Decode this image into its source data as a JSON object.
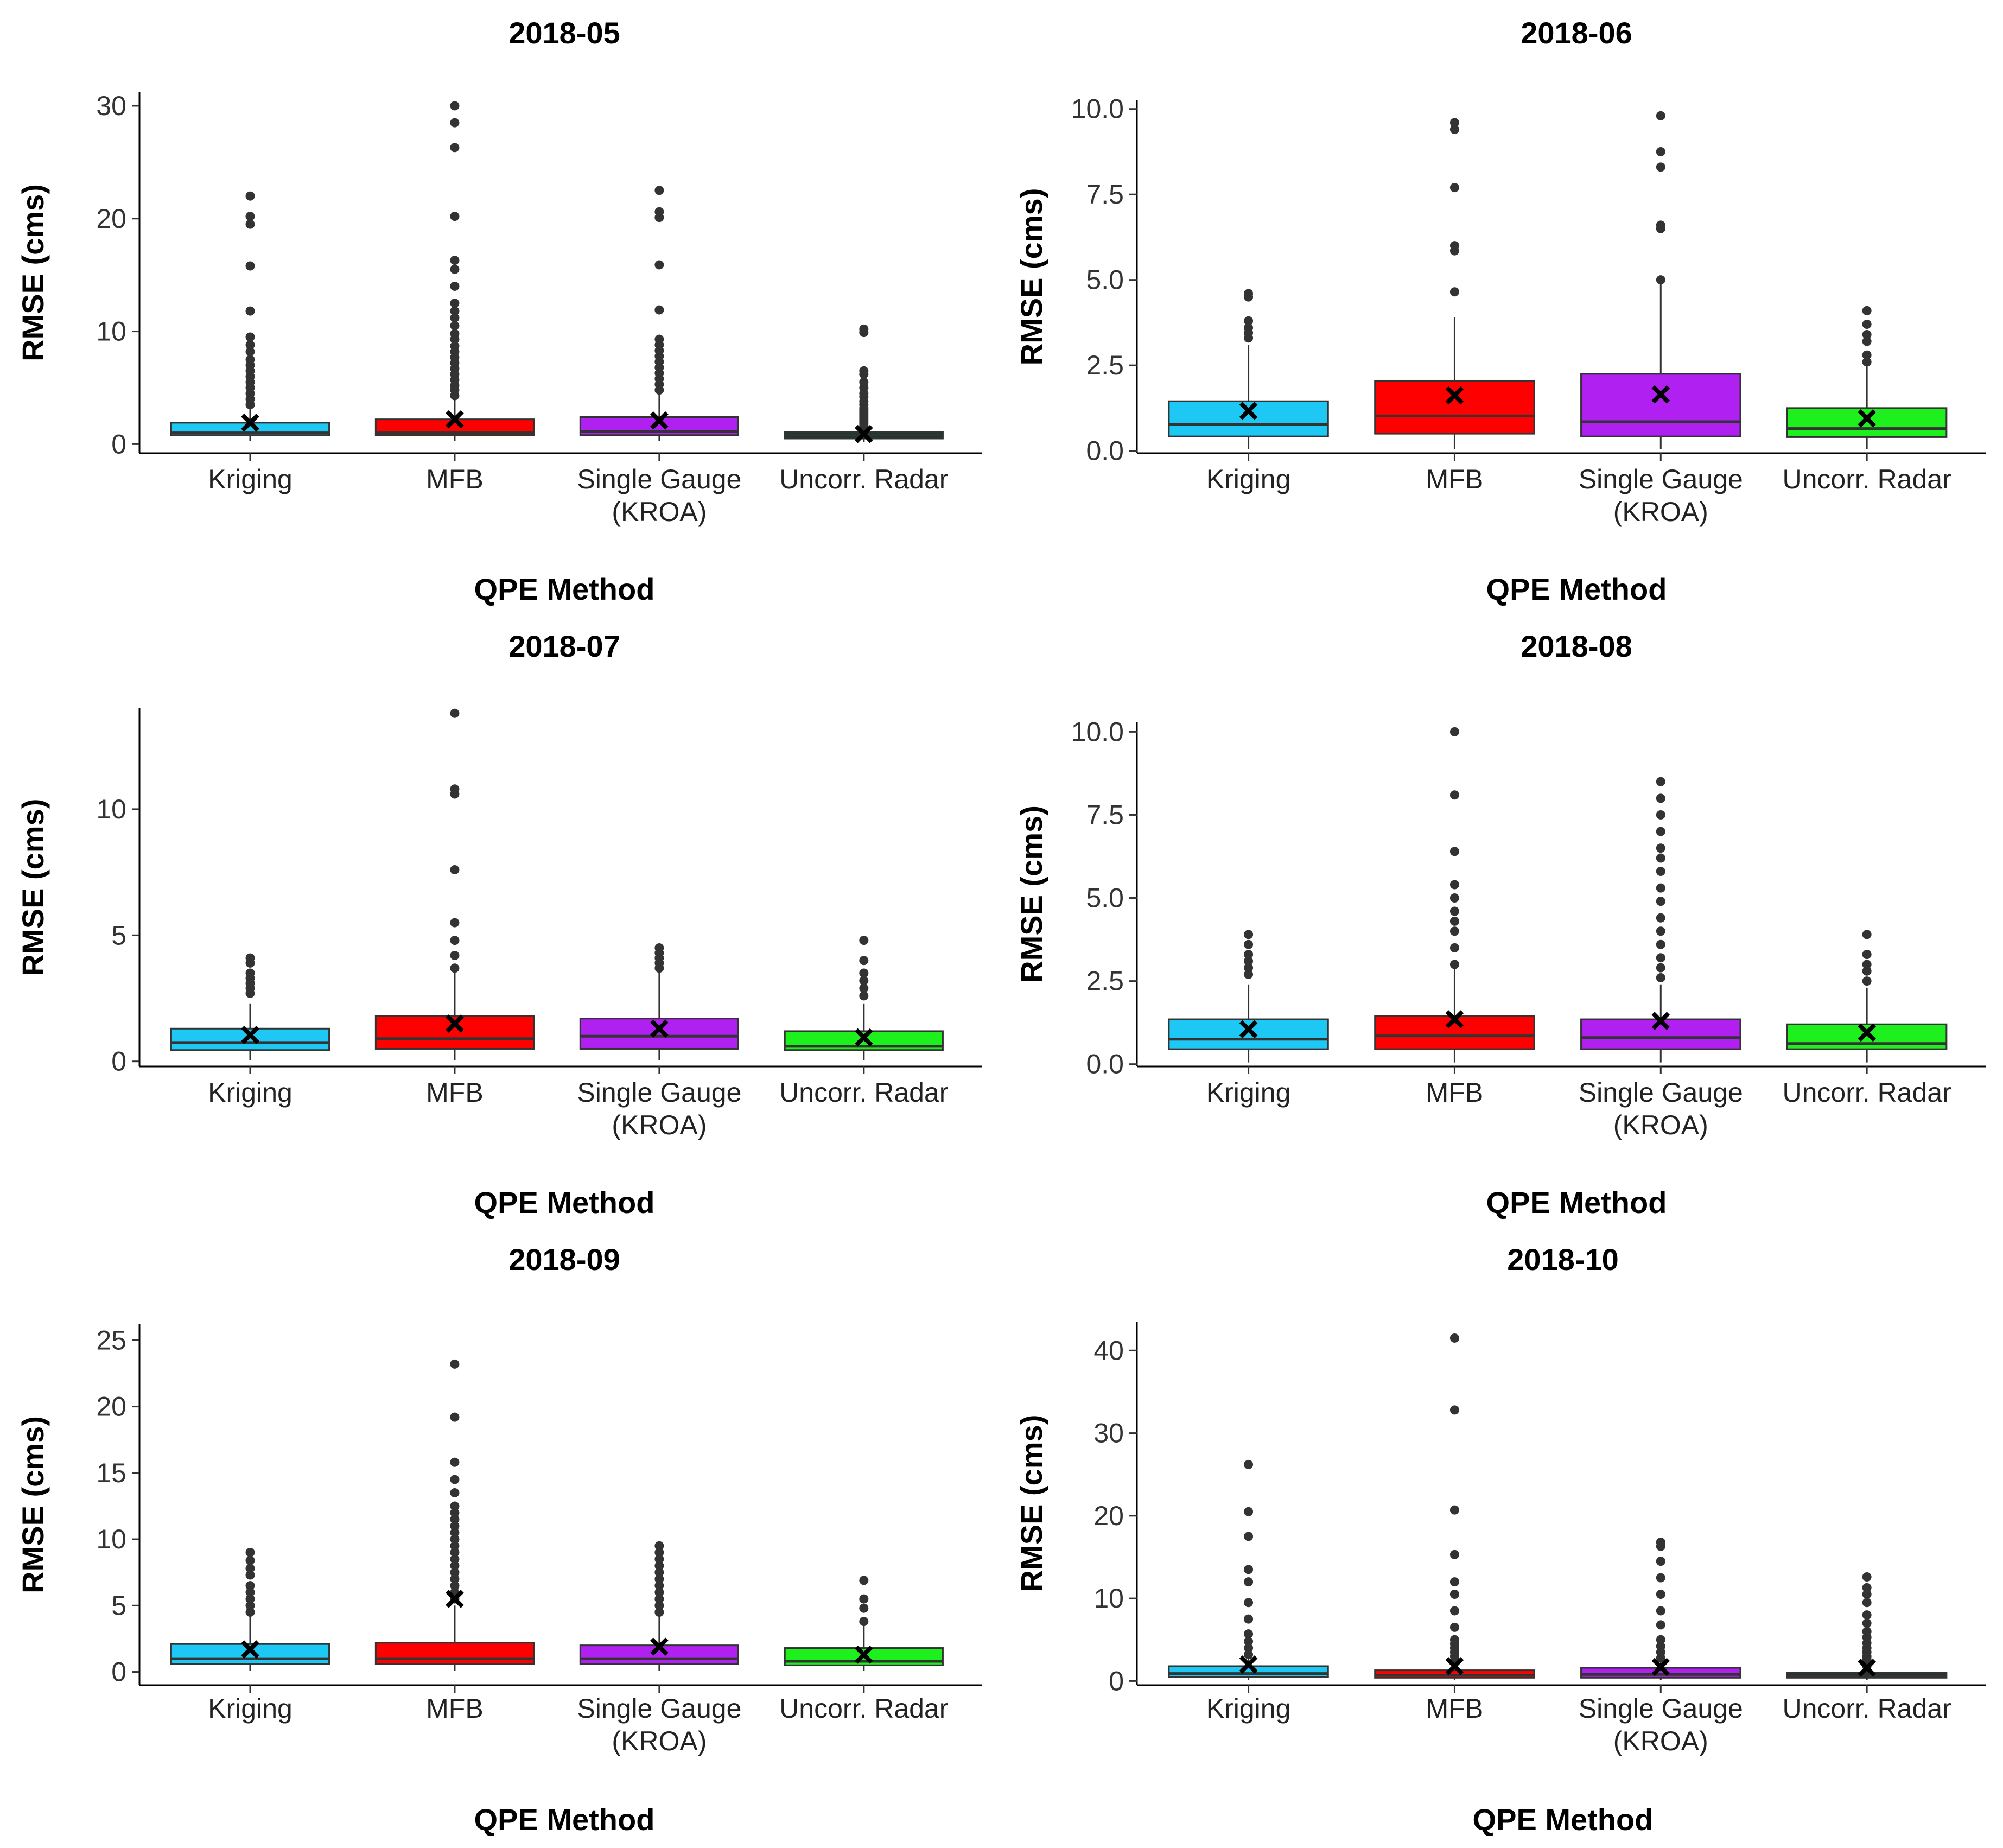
{
  "chart_data": [
    {
      "type": "box",
      "title": "2018-05",
      "xlabel": "QPE Method",
      "ylabel": "RMSE (cms)",
      "ylim": [
        -0.8,
        31.2
      ],
      "yticks": [
        0,
        10,
        20,
        30
      ],
      "ytick_labels": [
        "0",
        "10",
        "20",
        "30"
      ],
      "categories": [
        [
          "Kriging"
        ],
        [
          "MFB"
        ],
        [
          "Single Gauge",
          "(KROA)"
        ],
        [
          "Uncorr. Radar"
        ]
      ],
      "colors": [
        "#1ec8f5",
        "#ff0000",
        "#b020f0",
        "#1a3a2a"
      ],
      "series": [
        {
          "name": "Kriging",
          "q1": 0.8,
          "median": 1.0,
          "q3": 1.9,
          "whisker_low": 0.3,
          "whisker_high": 3.2,
          "mean": 1.9,
          "outliers": [
            3.5,
            4.0,
            4.5,
            5.0,
            5.5,
            6.0,
            6.5,
            7.0,
            7.5,
            8.2,
            8.8,
            9.5,
            11.8,
            15.8,
            19.5,
            20.2,
            22.0
          ]
        },
        {
          "name": "MFB",
          "q1": 0.8,
          "median": 1.0,
          "q3": 2.2,
          "whisker_low": 0.3,
          "whisker_high": 4.0,
          "mean": 2.2,
          "outliers": [
            4.3,
            4.8,
            5.2,
            5.7,
            6.2,
            6.7,
            7.2,
            7.7,
            8.2,
            8.7,
            9.3,
            9.8,
            10.5,
            11.2,
            11.8,
            12.5,
            14.0,
            15.5,
            16.3,
            20.2,
            26.3,
            28.5,
            30.0
          ]
        },
        {
          "name": "Single Gauge (KROA)",
          "q1": 0.8,
          "median": 1.1,
          "q3": 2.4,
          "whisker_low": 0.3,
          "whisker_high": 4.5,
          "mean": 2.1,
          "outliers": [
            4.8,
            5.3,
            5.8,
            6.3,
            6.8,
            7.3,
            7.8,
            8.3,
            8.8,
            9.3,
            11.9,
            15.9,
            20.1,
            20.6,
            22.5
          ]
        },
        {
          "name": "Uncorr. Radar",
          "q1": 0.5,
          "median": 0.8,
          "q3": 1.1,
          "whisker_low": 0.2,
          "whisker_high": 1.5,
          "mean": 0.9,
          "outliers": [
            1.6,
            1.8,
            2.0,
            2.2,
            2.4,
            2.6,
            2.8,
            3.0,
            3.2,
            3.5,
            3.8,
            4.2,
            4.5,
            5.0,
            5.5,
            6.2,
            6.5,
            9.9,
            10.2
          ]
        }
      ]
    },
    {
      "type": "box",
      "title": "2018-06",
      "xlabel": "QPE Method",
      "ylabel": "RMSE (cms)",
      "ylim": [
        -0.07,
        10.25
      ],
      "yticks": [
        0,
        2.5,
        5,
        7.5,
        10
      ],
      "ytick_labels": [
        "0.0",
        "2.5",
        "5.0",
        "7.5",
        "10.0"
      ],
      "categories": [
        [
          "Kriging"
        ],
        [
          "MFB"
        ],
        [
          "Single Gauge",
          "(KROA)"
        ],
        [
          "Uncorr. Radar"
        ]
      ],
      "colors": [
        "#1ec8f5",
        "#ff0000",
        "#b020f0",
        "#1ef01e"
      ],
      "series": [
        {
          "name": "Kriging",
          "q1": 0.42,
          "median": 0.78,
          "q3": 1.45,
          "whisker_low": 0.05,
          "whisker_high": 3.1,
          "mean": 1.17,
          "outliers": [
            3.3,
            3.45,
            3.6,
            3.8,
            4.5,
            4.6
          ]
        },
        {
          "name": "MFB",
          "q1": 0.5,
          "median": 1.02,
          "q3": 2.05,
          "whisker_low": 0.05,
          "whisker_high": 3.9,
          "mean": 1.62,
          "outliers": [
            4.65,
            5.85,
            6.0,
            7.7,
            9.4,
            9.6
          ]
        },
        {
          "name": "Single Gauge (KROA)",
          "q1": 0.42,
          "median": 0.85,
          "q3": 2.25,
          "whisker_low": 0.05,
          "whisker_high": 4.9,
          "mean": 1.65,
          "outliers": [
            5.0,
            6.5,
            6.6,
            8.3,
            8.75,
            9.8
          ]
        },
        {
          "name": "Uncorr. Radar",
          "q1": 0.4,
          "median": 0.65,
          "q3": 1.25,
          "whisker_low": 0.05,
          "whisker_high": 2.5,
          "mean": 0.95,
          "outliers": [
            2.6,
            2.8,
            3.2,
            3.4,
            3.7,
            4.1
          ]
        }
      ]
    },
    {
      "type": "box",
      "title": "2018-07",
      "xlabel": "QPE Method",
      "ylabel": "RMSE (cms)",
      "ylim": [
        -0.2,
        14.0
      ],
      "yticks": [
        0,
        5,
        10
      ],
      "ytick_labels": [
        "0",
        "5",
        "10"
      ],
      "categories": [
        [
          "Kriging"
        ],
        [
          "MFB"
        ],
        [
          "Single Gauge",
          "(KROA)"
        ],
        [
          "Uncorr. Radar"
        ]
      ],
      "colors": [
        "#1ec8f5",
        "#ff0000",
        "#b020f0",
        "#1ef01e"
      ],
      "series": [
        {
          "name": "Kriging",
          "q1": 0.45,
          "median": 0.75,
          "q3": 1.3,
          "whisker_low": 0.05,
          "whisker_high": 2.3,
          "mean": 1.05,
          "outliers": [
            2.7,
            2.9,
            3.1,
            3.3,
            3.5,
            3.9,
            4.1
          ]
        },
        {
          "name": "MFB",
          "q1": 0.5,
          "median": 0.9,
          "q3": 1.8,
          "whisker_low": 0.05,
          "whisker_high": 3.5,
          "mean": 1.5,
          "outliers": [
            3.7,
            4.2,
            4.8,
            5.5,
            7.6,
            10.6,
            10.8,
            13.8
          ]
        },
        {
          "name": "Single Gauge (KROA)",
          "q1": 0.5,
          "median": 1.0,
          "q3": 1.7,
          "whisker_low": 0.05,
          "whisker_high": 3.5,
          "mean": 1.3,
          "outliers": [
            3.7,
            3.9,
            4.1,
            4.3,
            4.5
          ]
        },
        {
          "name": "Uncorr. Radar",
          "q1": 0.45,
          "median": 0.6,
          "q3": 1.2,
          "whisker_low": 0.05,
          "whisker_high": 2.3,
          "mean": 0.95,
          "outliers": [
            2.6,
            2.9,
            3.2,
            3.5,
            4.0,
            4.8
          ]
        }
      ]
    },
    {
      "type": "box",
      "title": "2018-08",
      "xlabel": "QPE Method",
      "ylabel": "RMSE (cms)",
      "ylim": [
        -0.07,
        10.3
      ],
      "yticks": [
        0,
        2.5,
        5,
        7.5,
        10
      ],
      "ytick_labels": [
        "0.0",
        "2.5",
        "5.0",
        "7.5",
        "10.0"
      ],
      "categories": [
        [
          "Kriging"
        ],
        [
          "MFB"
        ],
        [
          "Single Gauge",
          "(KROA)"
        ],
        [
          "Uncorr. Radar"
        ]
      ],
      "colors": [
        "#1ec8f5",
        "#ff0000",
        "#b020f0",
        "#1ef01e"
      ],
      "series": [
        {
          "name": "Kriging",
          "q1": 0.45,
          "median": 0.75,
          "q3": 1.35,
          "whisker_low": 0.05,
          "whisker_high": 2.4,
          "mean": 1.05,
          "outliers": [
            2.7,
            2.9,
            3.1,
            3.3,
            3.6,
            3.9
          ]
        },
        {
          "name": "MFB",
          "q1": 0.45,
          "median": 0.85,
          "q3": 1.45,
          "whisker_low": 0.05,
          "whisker_high": 2.9,
          "mean": 1.35,
          "outliers": [
            3.0,
            3.5,
            4.0,
            4.3,
            4.6,
            5.0,
            5.4,
            6.4,
            8.1,
            10.0
          ]
        },
        {
          "name": "Single Gauge (KROA)",
          "q1": 0.45,
          "median": 0.8,
          "q3": 1.35,
          "whisker_low": 0.05,
          "whisker_high": 2.4,
          "mean": 1.3,
          "outliers": [
            2.6,
            2.9,
            3.2,
            3.6,
            4.0,
            4.4,
            4.9,
            5.3,
            5.8,
            6.2,
            6.5,
            7.0,
            7.5,
            8.0,
            8.5
          ]
        },
        {
          "name": "Uncorr. Radar",
          "q1": 0.45,
          "median": 0.62,
          "q3": 1.2,
          "whisker_low": 0.05,
          "whisker_high": 2.3,
          "mean": 0.95,
          "outliers": [
            2.5,
            2.8,
            3.0,
            3.3,
            3.9
          ]
        }
      ]
    },
    {
      "type": "box",
      "title": "2018-09",
      "xlabel": "QPE Method",
      "ylabel": "RMSE (cms)",
      "ylim": [
        -1.0,
        26.2
      ],
      "yticks": [
        0,
        5,
        10,
        15,
        20,
        25
      ],
      "ytick_labels": [
        "0",
        "5",
        "10",
        "15",
        "20",
        "25"
      ],
      "categories": [
        [
          "Kriging"
        ],
        [
          "MFB"
        ],
        [
          "Single Gauge",
          "(KROA)"
        ],
        [
          "Uncorr. Radar"
        ]
      ],
      "colors": [
        "#1ec8f5",
        "#ff0000",
        "#b020f0",
        "#1ef01e"
      ],
      "series": [
        {
          "name": "Kriging",
          "q1": 0.6,
          "median": 1.0,
          "q3": 2.1,
          "whisker_low": 0.1,
          "whisker_high": 4.2,
          "mean": 1.7,
          "outliers": [
            4.5,
            5.0,
            5.5,
            6.0,
            6.5,
            7.3,
            7.8,
            8.4,
            9.0
          ]
        },
        {
          "name": "MFB",
          "q1": 0.6,
          "median": 1.0,
          "q3": 2.2,
          "whisker_low": 0.1,
          "whisker_high": 5.0,
          "mean": 5.5,
          "outliers": [
            5.5,
            6.0,
            6.5,
            7.0,
            7.5,
            8.0,
            8.5,
            9.0,
            9.5,
            10.0,
            10.5,
            11.0,
            11.5,
            12.0,
            12.5,
            13.5,
            14.5,
            15.8,
            19.2,
            23.2
          ]
        },
        {
          "name": "Single Gauge (KROA)",
          "q1": 0.6,
          "median": 1.0,
          "q3": 2.0,
          "whisker_low": 0.1,
          "whisker_high": 4.2,
          "mean": 1.9,
          "outliers": [
            4.5,
            5.0,
            5.5,
            6.0,
            6.5,
            7.0,
            7.5,
            8.0,
            8.5,
            9.0,
            9.5
          ]
        },
        {
          "name": "Uncorr. Radar",
          "q1": 0.5,
          "median": 0.8,
          "q3": 1.8,
          "whisker_low": 0.1,
          "whisker_high": 3.5,
          "mean": 1.3,
          "outliers": [
            3.8,
            4.8,
            5.5,
            6.9
          ]
        }
      ]
    },
    {
      "type": "box",
      "title": "2018-10",
      "xlabel": "QPE Method",
      "ylabel": "RMSE (cms)",
      "ylim": [
        -0.5,
        43.5
      ],
      "yticks": [
        0,
        10,
        20,
        30,
        40
      ],
      "ytick_labels": [
        "0",
        "10",
        "20",
        "30",
        "40"
      ],
      "categories": [
        [
          "Kriging"
        ],
        [
          "MFB"
        ],
        [
          "Single Gauge",
          "(KROA)"
        ],
        [
          "Uncorr. Radar"
        ]
      ],
      "colors": [
        "#1ec8f5",
        "#ff0000",
        "#b020f0",
        "#1a3a2a"
      ],
      "series": [
        {
          "name": "Kriging",
          "q1": 0.5,
          "median": 0.9,
          "q3": 1.8,
          "whisker_low": 0.1,
          "whisker_high": 2.8,
          "mean": 2.0,
          "outliers": [
            3.2,
            4.0,
            4.8,
            5.7,
            7.5,
            9.5,
            12.0,
            13.5,
            17.5,
            20.5,
            26.2
          ]
        },
        {
          "name": "MFB",
          "q1": 0.4,
          "median": 0.7,
          "q3": 1.3,
          "whisker_low": 0.1,
          "whisker_high": 2.2,
          "mean": 1.8,
          "outliers": [
            2.5,
            3.0,
            3.5,
            4.0,
            4.5,
            5.0,
            6.5,
            8.5,
            10.5,
            12.0,
            15.3,
            20.7,
            32.8,
            41.5
          ]
        },
        {
          "name": "Single Gauge (KROA)",
          "q1": 0.4,
          "median": 0.8,
          "q3": 1.6,
          "whisker_low": 0.1,
          "whisker_high": 2.5,
          "mean": 1.7,
          "outliers": [
            2.8,
            3.5,
            4.2,
            5.0,
            6.8,
            8.5,
            10.5,
            12.5,
            14.5,
            16.3,
            16.8
          ]
        },
        {
          "name": "Uncorr. Radar",
          "q1": 0.4,
          "median": 0.6,
          "q3": 1.0,
          "whisker_low": 0.1,
          "whisker_high": 1.6,
          "mean": 1.6,
          "outliers": [
            1.8,
            2.2,
            2.6,
            3.0,
            3.5,
            4.0,
            4.6,
            5.3,
            6.0,
            7.0,
            8.0,
            9.5,
            10.5,
            11.3,
            12.6
          ]
        }
      ]
    }
  ]
}
